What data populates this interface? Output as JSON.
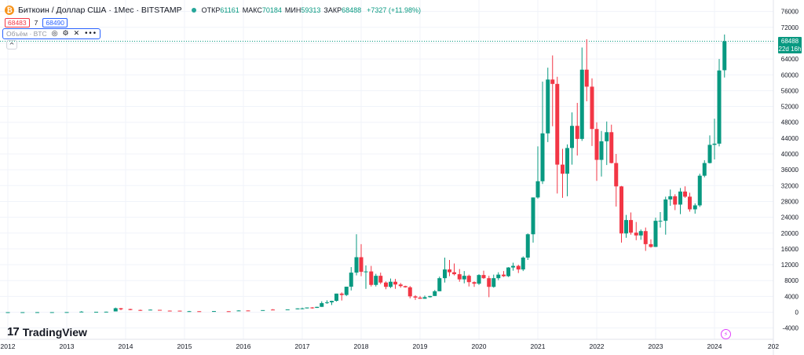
{
  "header": {
    "symbol_icon": "bitcoin-icon",
    "symbol_icon_glyph": "₿",
    "title": "Биткоин / Доллар США · 1Мес · BITSTAMP",
    "open_label": "ОТКР",
    "open": "61161",
    "high_label": "МАКС",
    "high": "70184",
    "low_label": "МИН",
    "low": "59313",
    "close_label": "ЗАКР",
    "close": "68488",
    "change": "+7327 (+11.98%)"
  },
  "bidask": {
    "bid": "68483",
    "spread": "7",
    "ask": "68490"
  },
  "indicator": {
    "label": "Объём · BTC"
  },
  "collapse_glyph": "^",
  "last_price": {
    "price": "68488",
    "countdown": "22d 16h"
  },
  "branding": {
    "logo_mark": "17",
    "logo_text": "TradingView"
  },
  "event_glyph": "⚡",
  "colors": {
    "up": "#089981",
    "down": "#f23645",
    "grid": "#f0f3fa",
    "text": "#131722",
    "accent": "#2962ff"
  },
  "chart_data": {
    "type": "candlestick",
    "symbol": "BTCUSD",
    "exchange": "BITSTAMP",
    "interval": "1M",
    "y_ticks": [
      -4000,
      0,
      4000,
      8000,
      12000,
      16000,
      20000,
      24000,
      28000,
      32000,
      36000,
      40000,
      44000,
      48000,
      52000,
      56000,
      60000,
      64000,
      68000,
      72000,
      76000
    ],
    "x_ticks": [
      {
        "label": "2012",
        "t": 2012.0
      },
      {
        "label": "2013",
        "t": 2013.0
      },
      {
        "label": "2014",
        "t": 2014.0
      },
      {
        "label": "2015",
        "t": 2015.0
      },
      {
        "label": "2016",
        "t": 2016.0
      },
      {
        "label": "2017",
        "t": 2017.0
      },
      {
        "label": "2018",
        "t": 2018.0
      },
      {
        "label": "2019",
        "t": 2019.0
      },
      {
        "label": "2020",
        "t": 2020.0
      },
      {
        "label": "2021",
        "t": 2021.0
      },
      {
        "label": "2022",
        "t": 2022.0
      },
      {
        "label": "2023",
        "t": 2023.0
      },
      {
        "label": "2024",
        "t": 2024.0
      },
      {
        "label": "202",
        "t": 2025.0
      }
    ],
    "candles": [
      {
        "t": 2012.0,
        "o": 5,
        "h": 7,
        "l": 4,
        "c": 5
      },
      {
        "t": 2012.25,
        "o": 5,
        "h": 6,
        "l": 4,
        "c": 5
      },
      {
        "t": 2012.5,
        "o": 6,
        "h": 13,
        "l": 6,
        "c": 10
      },
      {
        "t": 2012.75,
        "o": 10,
        "h": 13,
        "l": 10,
        "c": 12
      },
      {
        "t": 2013.0,
        "o": 13,
        "h": 30,
        "l": 13,
        "c": 30
      },
      {
        "t": 2013.25,
        "o": 93,
        "h": 266,
        "l": 50,
        "c": 139
      },
      {
        "t": 2013.5,
        "o": 90,
        "h": 110,
        "l": 66,
        "c": 106
      },
      {
        "t": 2013.67,
        "o": 106,
        "h": 140,
        "l": 100,
        "c": 123
      },
      {
        "t": 2013.83,
        "o": 200,
        "h": 1163,
        "l": 195,
        "c": 1000
      },
      {
        "t": 2013.92,
        "o": 1000,
        "h": 1100,
        "l": 500,
        "c": 730
      },
      {
        "t": 2014.08,
        "o": 800,
        "h": 870,
        "l": 500,
        "c": 560
      },
      {
        "t": 2014.25,
        "o": 560,
        "h": 650,
        "l": 340,
        "c": 450
      },
      {
        "t": 2014.42,
        "o": 620,
        "h": 680,
        "l": 560,
        "c": 640
      },
      {
        "t": 2014.58,
        "o": 590,
        "h": 600,
        "l": 450,
        "c": 480
      },
      {
        "t": 2014.75,
        "o": 390,
        "h": 420,
        "l": 290,
        "c": 340
      },
      {
        "t": 2014.92,
        "o": 380,
        "h": 390,
        "l": 300,
        "c": 320
      },
      {
        "t": 2015.08,
        "o": 230,
        "h": 330,
        "l": 170,
        "c": 250
      },
      {
        "t": 2015.25,
        "o": 240,
        "h": 260,
        "l": 215,
        "c": 235
      },
      {
        "t": 2015.5,
        "o": 260,
        "h": 300,
        "l": 250,
        "c": 280
      },
      {
        "t": 2015.75,
        "o": 240,
        "h": 250,
        "l": 210,
        "c": 235
      },
      {
        "t": 2015.92,
        "o": 380,
        "h": 500,
        "l": 350,
        "c": 430
      },
      {
        "t": 2016.08,
        "o": 430,
        "h": 440,
        "l": 360,
        "c": 415
      },
      {
        "t": 2016.33,
        "o": 450,
        "h": 470,
        "l": 440,
        "c": 530
      },
      {
        "t": 2016.5,
        "o": 660,
        "h": 780,
        "l": 520,
        "c": 620
      },
      {
        "t": 2016.75,
        "o": 610,
        "h": 650,
        "l": 600,
        "c": 700
      },
      {
        "t": 2016.92,
        "o": 740,
        "h": 980,
        "l": 730,
        "c": 960
      },
      {
        "t": 2017.0,
        "o": 960,
        "h": 1150,
        "l": 750,
        "c": 970
      },
      {
        "t": 2017.08,
        "o": 970,
        "h": 1200,
        "l": 940,
        "c": 1190
      },
      {
        "t": 2017.17,
        "o": 1190,
        "h": 1300,
        "l": 890,
        "c": 1080
      },
      {
        "t": 2017.25,
        "o": 1080,
        "h": 1350,
        "l": 1070,
        "c": 1350
      },
      {
        "t": 2017.33,
        "o": 1350,
        "h": 2760,
        "l": 1340,
        "c": 2300
      },
      {
        "t": 2017.42,
        "o": 2300,
        "h": 3000,
        "l": 2100,
        "c": 2500
      },
      {
        "t": 2017.5,
        "o": 2500,
        "h": 2900,
        "l": 1800,
        "c": 2860
      },
      {
        "t": 2017.58,
        "o": 2860,
        "h": 4700,
        "l": 2700,
        "c": 4700
      },
      {
        "t": 2017.67,
        "o": 4700,
        "h": 5000,
        "l": 2950,
        "c": 4350
      },
      {
        "t": 2017.75,
        "o": 4350,
        "h": 6450,
        "l": 4100,
        "c": 6450
      },
      {
        "t": 2017.83,
        "o": 6450,
        "h": 11400,
        "l": 5500,
        "c": 10000
      },
      {
        "t": 2017.92,
        "o": 10000,
        "h": 19700,
        "l": 9300,
        "c": 13900
      },
      {
        "t": 2018.0,
        "o": 13900,
        "h": 17200,
        "l": 9100,
        "c": 10200
      },
      {
        "t": 2018.08,
        "o": 10200,
        "h": 11800,
        "l": 5900,
        "c": 10300
      },
      {
        "t": 2018.17,
        "o": 10300,
        "h": 11700,
        "l": 6500,
        "c": 6900
      },
      {
        "t": 2018.25,
        "o": 6900,
        "h": 9700,
        "l": 6500,
        "c": 9200
      },
      {
        "t": 2018.33,
        "o": 9200,
        "h": 10000,
        "l": 7100,
        "c": 7500
      },
      {
        "t": 2018.42,
        "o": 7500,
        "h": 7800,
        "l": 5800,
        "c": 6400
      },
      {
        "t": 2018.5,
        "o": 6400,
        "h": 8500,
        "l": 6100,
        "c": 7700
      },
      {
        "t": 2018.58,
        "o": 7700,
        "h": 8400,
        "l": 5900,
        "c": 7000
      },
      {
        "t": 2018.67,
        "o": 7000,
        "h": 7400,
        "l": 6200,
        "c": 6600
      },
      {
        "t": 2018.75,
        "o": 6600,
        "h": 6700,
        "l": 6200,
        "c": 6300
      },
      {
        "t": 2018.83,
        "o": 6300,
        "h": 6600,
        "l": 3500,
        "c": 4000
      },
      {
        "t": 2018.92,
        "o": 4000,
        "h": 4300,
        "l": 3100,
        "c": 3700
      },
      {
        "t": 2019.0,
        "o": 3700,
        "h": 4100,
        "l": 3400,
        "c": 3400
      },
      {
        "t": 2019.08,
        "o": 3400,
        "h": 4200,
        "l": 3400,
        "c": 3800
      },
      {
        "t": 2019.17,
        "o": 3800,
        "h": 4100,
        "l": 3700,
        "c": 4100
      },
      {
        "t": 2019.25,
        "o": 4100,
        "h": 5600,
        "l": 4100,
        "c": 5300
      },
      {
        "t": 2019.33,
        "o": 5300,
        "h": 9000,
        "l": 5300,
        "c": 8600
      },
      {
        "t": 2019.42,
        "o": 8600,
        "h": 13800,
        "l": 7500,
        "c": 10800
      },
      {
        "t": 2019.5,
        "o": 10800,
        "h": 13200,
        "l": 9100,
        "c": 10100
      },
      {
        "t": 2019.58,
        "o": 10100,
        "h": 12300,
        "l": 9300,
        "c": 9600
      },
      {
        "t": 2019.67,
        "o": 9600,
        "h": 10900,
        "l": 7700,
        "c": 8300
      },
      {
        "t": 2019.75,
        "o": 8300,
        "h": 10400,
        "l": 7300,
        "c": 9200
      },
      {
        "t": 2019.83,
        "o": 9200,
        "h": 9500,
        "l": 6500,
        "c": 7600
      },
      {
        "t": 2019.92,
        "o": 7600,
        "h": 7800,
        "l": 6400,
        "c": 7200
      },
      {
        "t": 2020.0,
        "o": 7200,
        "h": 9600,
        "l": 6900,
        "c": 9400
      },
      {
        "t": 2020.08,
        "o": 9400,
        "h": 10500,
        "l": 8400,
        "c": 8600
      },
      {
        "t": 2020.17,
        "o": 8600,
        "h": 9200,
        "l": 3800,
        "c": 6400
      },
      {
        "t": 2020.25,
        "o": 6400,
        "h": 9500,
        "l": 6200,
        "c": 8600
      },
      {
        "t": 2020.33,
        "o": 8600,
        "h": 10100,
        "l": 8100,
        "c": 9500
      },
      {
        "t": 2020.42,
        "o": 9500,
        "h": 10400,
        "l": 8900,
        "c": 9100
      },
      {
        "t": 2020.5,
        "o": 9100,
        "h": 11400,
        "l": 8900,
        "c": 11300
      },
      {
        "t": 2020.58,
        "o": 11300,
        "h": 12500,
        "l": 10500,
        "c": 11700
      },
      {
        "t": 2020.67,
        "o": 11700,
        "h": 12000,
        "l": 9900,
        "c": 10800
      },
      {
        "t": 2020.75,
        "o": 10800,
        "h": 14100,
        "l": 10400,
        "c": 13800
      },
      {
        "t": 2020.83,
        "o": 13800,
        "h": 19900,
        "l": 13200,
        "c": 19700
      },
      {
        "t": 2020.92,
        "o": 19700,
        "h": 29000,
        "l": 17600,
        "c": 29000
      },
      {
        "t": 2021.0,
        "o": 29000,
        "h": 41900,
        "l": 28700,
        "c": 33100
      },
      {
        "t": 2021.08,
        "o": 33100,
        "h": 58300,
        "l": 32400,
        "c": 45200
      },
      {
        "t": 2021.17,
        "o": 45200,
        "h": 61800,
        "l": 43000,
        "c": 58800
      },
      {
        "t": 2021.25,
        "o": 58800,
        "h": 64900,
        "l": 47000,
        "c": 57700
      },
      {
        "t": 2021.33,
        "o": 57700,
        "h": 59500,
        "l": 30000,
        "c": 37300
      },
      {
        "t": 2021.42,
        "o": 37300,
        "h": 41300,
        "l": 28900,
        "c": 35000
      },
      {
        "t": 2021.5,
        "o": 35000,
        "h": 42400,
        "l": 29300,
        "c": 41500
      },
      {
        "t": 2021.58,
        "o": 41500,
        "h": 50500,
        "l": 37300,
        "c": 47100
      },
      {
        "t": 2021.67,
        "o": 47100,
        "h": 52900,
        "l": 39600,
        "c": 43800
      },
      {
        "t": 2021.75,
        "o": 43800,
        "h": 66900,
        "l": 43300,
        "c": 61300
      },
      {
        "t": 2021.83,
        "o": 61300,
        "h": 69000,
        "l": 53300,
        "c": 57000
      },
      {
        "t": 2021.92,
        "o": 57000,
        "h": 59100,
        "l": 42000,
        "c": 46300
      },
      {
        "t": 2022.0,
        "o": 46300,
        "h": 48000,
        "l": 33200,
        "c": 38500
      },
      {
        "t": 2022.08,
        "o": 38500,
        "h": 45800,
        "l": 34300,
        "c": 43200
      },
      {
        "t": 2022.17,
        "o": 43200,
        "h": 48200,
        "l": 37200,
        "c": 45500
      },
      {
        "t": 2022.25,
        "o": 45500,
        "h": 47400,
        "l": 37600,
        "c": 37700
      },
      {
        "t": 2022.33,
        "o": 37700,
        "h": 40000,
        "l": 26700,
        "c": 31800
      },
      {
        "t": 2022.42,
        "o": 31800,
        "h": 31900,
        "l": 17600,
        "c": 19900
      },
      {
        "t": 2022.5,
        "o": 19900,
        "h": 24600,
        "l": 18800,
        "c": 23300
      },
      {
        "t": 2022.58,
        "o": 23300,
        "h": 25200,
        "l": 19600,
        "c": 20100
      },
      {
        "t": 2022.67,
        "o": 20100,
        "h": 22800,
        "l": 18200,
        "c": 19400
      },
      {
        "t": 2022.75,
        "o": 19400,
        "h": 20900,
        "l": 18300,
        "c": 20500
      },
      {
        "t": 2022.83,
        "o": 20500,
        "h": 21400,
        "l": 15500,
        "c": 17200
      },
      {
        "t": 2022.92,
        "o": 17200,
        "h": 18400,
        "l": 16300,
        "c": 16500
      },
      {
        "t": 2023.0,
        "o": 16500,
        "h": 23900,
        "l": 16500,
        "c": 23100
      },
      {
        "t": 2023.08,
        "o": 23100,
        "h": 25300,
        "l": 21400,
        "c": 23100
      },
      {
        "t": 2023.17,
        "o": 23100,
        "h": 29200,
        "l": 19600,
        "c": 28500
      },
      {
        "t": 2023.25,
        "o": 28500,
        "h": 31000,
        "l": 26900,
        "c": 29300
      },
      {
        "t": 2023.33,
        "o": 29300,
        "h": 29800,
        "l": 25800,
        "c": 27200
      },
      {
        "t": 2023.42,
        "o": 27200,
        "h": 31400,
        "l": 24800,
        "c": 30500
      },
      {
        "t": 2023.5,
        "o": 30500,
        "h": 31800,
        "l": 28900,
        "c": 29200
      },
      {
        "t": 2023.58,
        "o": 29200,
        "h": 30200,
        "l": 25400,
        "c": 26000
      },
      {
        "t": 2023.67,
        "o": 26000,
        "h": 27500,
        "l": 24900,
        "c": 27000
      },
      {
        "t": 2023.75,
        "o": 27000,
        "h": 35000,
        "l": 26600,
        "c": 34500
      },
      {
        "t": 2023.83,
        "o": 34500,
        "h": 38400,
        "l": 34100,
        "c": 37700
      },
      {
        "t": 2023.92,
        "o": 37700,
        "h": 44700,
        "l": 37600,
        "c": 42300
      },
      {
        "t": 2024.0,
        "o": 42300,
        "h": 48900,
        "l": 38600,
        "c": 42600
      },
      {
        "t": 2024.08,
        "o": 42600,
        "h": 64000,
        "l": 41900,
        "c": 61100
      },
      {
        "t": 2024.17,
        "o": 61161,
        "h": 70184,
        "l": 59313,
        "c": 68488
      }
    ]
  }
}
